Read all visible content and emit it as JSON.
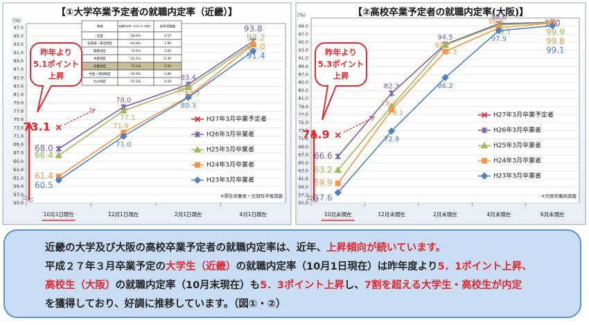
{
  "chart_data": [
    {
      "type": "line",
      "title": "【①大学卒業予定者の就職内定率（近畿）】",
      "y_label": "(%)",
      "grid": true,
      "categories": [
        "10月1日現在",
        "12月1日現在",
        "2月1日現在",
        "4月1日現在"
      ],
      "ylim": [
        55,
        97
      ],
      "yticks": [
        {
          "value": 55,
          "label": "55.0"
        },
        {
          "value": 57,
          "label": "57.0"
        },
        {
          "value": 59,
          "label": "59.0"
        },
        {
          "value": 61,
          "label": "61.0"
        },
        {
          "value": 63,
          "label": "63.0"
        },
        {
          "value": 65,
          "label": "65.0"
        },
        {
          "value": 67,
          "label": "67.0"
        },
        {
          "value": 69,
          "label": "69.0"
        },
        {
          "value": 71,
          "label": "71.0"
        },
        {
          "value": 73,
          "label": "73.0"
        },
        {
          "value": 75,
          "label": "75.0"
        },
        {
          "value": 77,
          "label": "77.0"
        },
        {
          "value": 79,
          "label": "79.0"
        },
        {
          "value": 81,
          "label": "81.0"
        },
        {
          "value": 83,
          "label": "83.0"
        },
        {
          "value": 85,
          "label": "85.0"
        },
        {
          "value": 87,
          "label": "87.0"
        },
        {
          "value": 89,
          "label": "89.0"
        },
        {
          "value": 91,
          "label": "91.0"
        },
        {
          "value": 93,
          "label": "93.0"
        },
        {
          "value": 95,
          "label": "95.0"
        },
        {
          "value": 97,
          "label": "97.0"
        }
      ],
      "series": [
        {
          "name": "H27年3月卒業予定者",
          "color": "#e8262b",
          "marker": "x",
          "values": [
            73.1,
            null,
            null,
            null
          ],
          "value_labels": [
            "73.1",
            null,
            null,
            null
          ]
        },
        {
          "name": "H26年3月卒業者",
          "color": "#7b5ea7",
          "marker": "star",
          "values": [
            68.0,
            78.0,
            83.4,
            93.8
          ],
          "value_labels": [
            "68.0",
            "78.0",
            "83.4",
            "93.8"
          ]
        },
        {
          "name": "H25年3月卒業者",
          "color": "#9bbb59",
          "marker": "triangle",
          "values": [
            66.4,
            77.1,
            82.7,
            93.2
          ],
          "value_labels": [
            "66.4",
            "77.1",
            "82.7",
            "93.2"
          ]
        },
        {
          "name": "H24年3月卒業者",
          "color": "#f79646",
          "marker": "square",
          "values": [
            61.4,
            71.9,
            80.5,
            93.0
          ],
          "value_labels": [
            "61.4",
            "71.9",
            "80.5",
            "93.0"
          ]
        },
        {
          "name": "H23年3月卒業者",
          "color": "#4f81bd",
          "marker": "diamond",
          "values": [
            60.5,
            71.0,
            80.3,
            91.4
          ],
          "value_labels": [
            "60.5",
            "71.0",
            "80.3",
            "91.4"
          ]
        }
      ],
      "callout": [
        "昨年より",
        "5.1ポイント",
        "上昇"
      ],
      "source": "※厚生労働省・文部科学省調査",
      "inset_table": {
        "header": [
          "地域",
          "就職内定率（H26.10.1現在）",
          "前年同期差"
        ],
        "rows": [
          [
            "全国",
            "68.4%",
            "4.1P"
          ],
          [
            "北海道・東北地区",
            "64.8%",
            "1.8P"
          ],
          [
            "関東地区",
            "74.5%",
            "3.0P"
          ],
          [
            "中部地区",
            "61.1%",
            "6.3P"
          ],
          [
            "近畿地区",
            "73.1%",
            "5.1P"
          ],
          [
            "中国・四国地区",
            "56.9%",
            "5.8P"
          ],
          [
            "九州地区",
            "57.2%",
            "5.5P"
          ]
        ],
        "highlight_row": 4
      }
    },
    {
      "type": "line",
      "title": "【②高校卒業予定者の就職内定率(大阪)】",
      "y_label": "(%)",
      "grid": true,
      "categories": [
        "10月末現在",
        "12月末現在",
        "2月末現在",
        "4月末現在",
        "6月末現在"
      ],
      "ylim": [
        55,
        100
      ],
      "yticks": [
        {
          "value": 55,
          "label": "55.0"
        },
        {
          "value": 57,
          "label": "57.0"
        },
        {
          "value": 59,
          "label": "59.0"
        },
        {
          "value": 61,
          "label": "61.0"
        },
        {
          "value": 63,
          "label": "63.0"
        },
        {
          "value": 65,
          "label": "65.0"
        },
        {
          "value": 67,
          "label": "67.0"
        },
        {
          "value": 69,
          "label": "69.0"
        },
        {
          "value": 71,
          "label": "71.0"
        },
        {
          "value": 73,
          "label": "73.0"
        },
        {
          "value": 75,
          "label": "75.0"
        },
        {
          "value": 77,
          "label": "77.0"
        },
        {
          "value": 79,
          "label": "79.0"
        },
        {
          "value": 81,
          "label": "81.0"
        },
        {
          "value": 83,
          "label": "83.0"
        },
        {
          "value": 85,
          "label": "85.0"
        },
        {
          "value": 87,
          "label": "87.0"
        },
        {
          "value": 89,
          "label": "89.0"
        },
        {
          "value": 91,
          "label": "91.0"
        },
        {
          "value": 93,
          "label": "93.0"
        },
        {
          "value": 95,
          "label": "95.0"
        },
        {
          "value": 97,
          "label": "97.0"
        },
        {
          "value": 99,
          "label": "99.0"
        }
      ],
      "series": [
        {
          "name": "H27年3月卒業予定者",
          "color": "#e8262b",
          "marker": "x",
          "values": [
            71.9,
            null,
            null,
            null,
            null
          ],
          "value_labels": [
            "71.9",
            null,
            null,
            null,
            null
          ]
        },
        {
          "name": "H26年3月卒業者",
          "color": "#7b5ea7",
          "marker": "star",
          "values": [
            66.6,
            82.3,
            94.5,
            99.6,
            100
          ],
          "value_labels": [
            "66.6",
            "82.3",
            "94.5",
            "99.6",
            "100"
          ]
        },
        {
          "name": "H25年3月卒業者",
          "color": "#9bbb59",
          "marker": "triangle",
          "values": [
            63.2,
            79.1,
            94.3,
            99.3,
            99.9
          ],
          "value_labels": [
            "63.2",
            "79.1",
            "94.3",
            "99.3",
            "99.9"
          ]
        },
        {
          "name": "H24年3月卒業者",
          "color": "#f79646",
          "marker": "square",
          "values": [
            59.9,
            78.2,
            92.7,
            98.6,
            99.8
          ],
          "value_labels": [
            "59.9",
            "78.2",
            "92.7",
            "98.6",
            "99.8"
          ]
        },
        {
          "name": "H23年3月卒業者",
          "color": "#4f81bd",
          "marker": "diamond",
          "values": [
            57.6,
            72.9,
            86.2,
            97.9,
            99.1
          ],
          "value_labels": [
            "57.6",
            "72.9",
            "86.2",
            "97.9",
            "99.1"
          ]
        }
      ],
      "callout": [
        "昨年より",
        "5.3ポイント",
        "上昇"
      ],
      "source": "※大阪労働局調査"
    }
  ],
  "summary": {
    "lines": [
      [
        {
          "text": "近畿の大学及び大阪の高校卒業予定者の就職内定率は、近年、",
          "emphasis": false
        },
        {
          "text": "上昇傾向が続いています。",
          "emphasis": true
        }
      ],
      [
        {
          "text": "平成２７年３月卒業予定の",
          "emphasis": false
        },
        {
          "text": "大学生（近畿）",
          "emphasis": true
        },
        {
          "text": "の就職内定率（10月1日現在）は昨年度より",
          "emphasis": false
        },
        {
          "text": "5．1ポイント上昇、",
          "emphasis": true
        }
      ],
      [
        {
          "text": "高校生（大阪）",
          "emphasis": true
        },
        {
          "text": "の就職内定率（10月末現在）も",
          "emphasis": false
        },
        {
          "text": "5．3ポイント上昇",
          "emphasis": true
        },
        {
          "text": "し、",
          "emphasis": false
        },
        {
          "text": "7割を超える大学生・高校生が内定",
          "emphasis": true
        }
      ],
      [
        {
          "text": "を獲得しており、好調に推移しています。（図①・②）",
          "emphasis": false
        }
      ]
    ]
  }
}
